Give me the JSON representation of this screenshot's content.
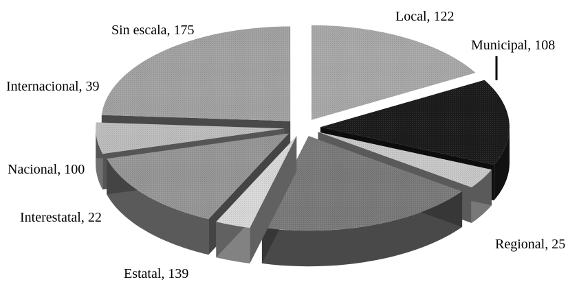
{
  "chart_data": {
    "type": "pie",
    "title": "",
    "variant": "3d-exploded",
    "legend": "none",
    "label_format": "{category}, {value}",
    "categories": [
      "Local",
      "Municipal",
      "Regional",
      "Estatal",
      "Interestatal",
      "Nacional",
      "Internacional",
      "Sin escala"
    ],
    "values": [
      122,
      108,
      25,
      139,
      22,
      100,
      39,
      175
    ],
    "colors": [
      "#a8a8a8",
      "#1c1c1c",
      "#c8c8c8",
      "#7a7a7a",
      "#d8d8d8",
      "#969696",
      "#bdbdbd",
      "#a2a2a2"
    ],
    "labels": [
      "Local, 122",
      "Municipal, 108",
      "Regional, 25",
      "Estatal, 139",
      "Interestatal, 22",
      "Nacional, 100",
      "Internacional, 39",
      "Sin escala, 175"
    ]
  }
}
